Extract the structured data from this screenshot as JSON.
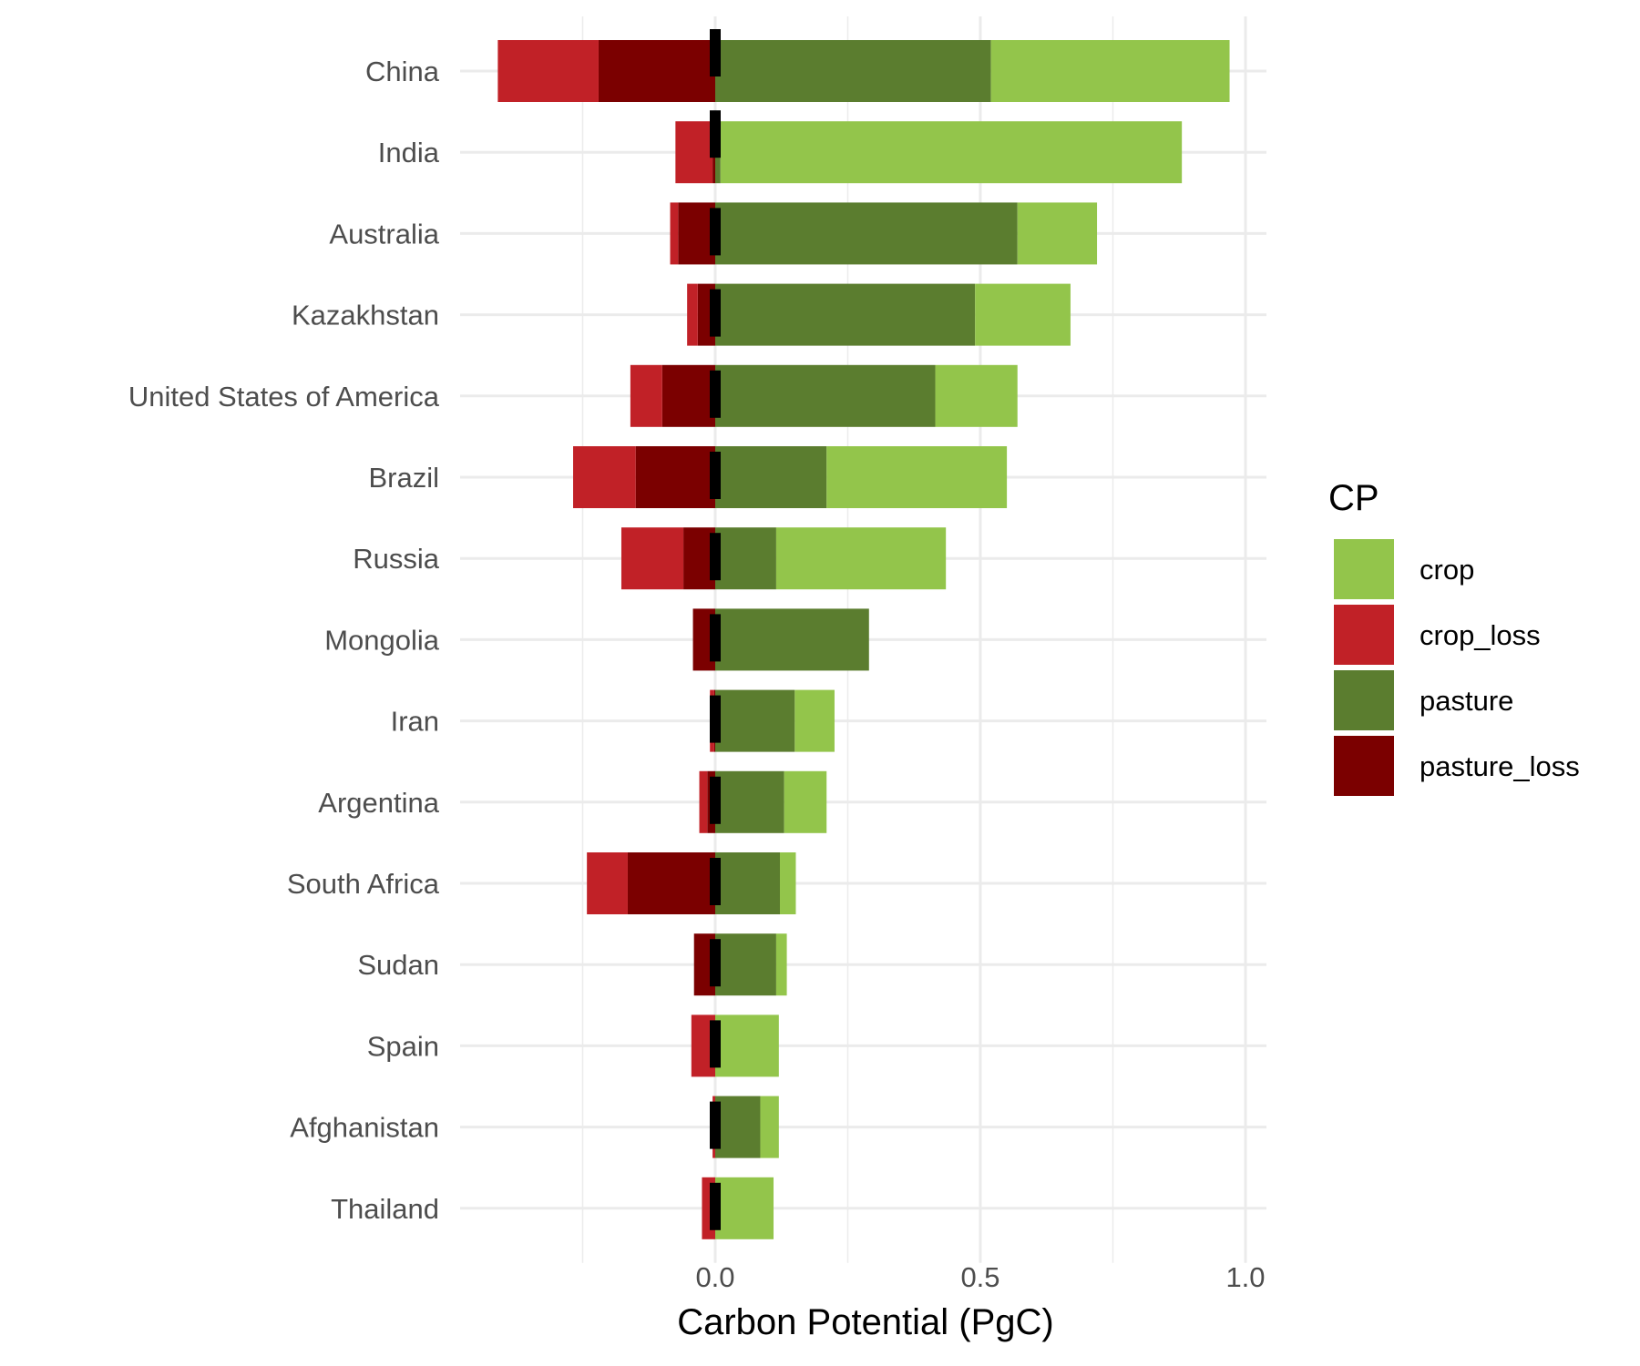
{
  "chart_data": {
    "type": "bar",
    "orientation": "horizontal",
    "stacking": "diverging",
    "title": "",
    "xlabel": "Carbon Potential (PgC)",
    "ylabel": "",
    "xlim": [
      -0.48,
      1.03
    ],
    "x_ticks": [
      0.0,
      0.5,
      1.0
    ],
    "x_tick_labels": [
      "0.0",
      "0.5",
      "1.0"
    ],
    "grid": true,
    "legend_title": "CP",
    "legend_position": "right",
    "categories": [
      "China",
      "India",
      "Australia",
      "Kazakhstan",
      "United States of America",
      "Brazil",
      "Russia",
      "Mongolia",
      "Iran",
      "Argentina",
      "South Africa",
      "Sudan",
      "Spain",
      "Afghanistan",
      "Thailand"
    ],
    "series": [
      {
        "name": "crop",
        "color": "#93c54b",
        "values": [
          0.45,
          0.87,
          0.15,
          0.18,
          0.155,
          0.34,
          0.32,
          0.0,
          0.075,
          0.08,
          0.03,
          0.02,
          0.12,
          0.035,
          0.11
        ]
      },
      {
        "name": "crop_loss",
        "color": "#c12127",
        "values": [
          -0.19,
          -0.07,
          -0.015,
          -0.02,
          -0.06,
          -0.118,
          -0.117,
          0.0,
          -0.008,
          -0.015,
          -0.077,
          0.0,
          -0.045,
          -0.005,
          -0.025
        ]
      },
      {
        "name": "pasture",
        "color": "#5b7d2f",
        "values": [
          0.52,
          0.01,
          0.57,
          0.49,
          0.415,
          0.21,
          0.115,
          0.29,
          0.15,
          0.13,
          0.122,
          0.115,
          0.0,
          0.085,
          0.0
        ]
      },
      {
        "name": "pasture_loss",
        "color": "#7b0000",
        "values": [
          -0.22,
          -0.005,
          -0.07,
          -0.033,
          -0.1,
          -0.15,
          -0.06,
          -0.042,
          -0.002,
          -0.015,
          -0.165,
          -0.04,
          0.0,
          0.0,
          0.0
        ]
      }
    ],
    "net_markers": [
      0.0,
      0.0,
      0.0,
      0.0,
      0.0,
      0.0,
      0.0,
      0.0,
      0.0,
      0.0,
      0.0,
      0.0,
      0.0,
      0.0,
      0.0
    ],
    "net_marker_color": "#000000"
  }
}
